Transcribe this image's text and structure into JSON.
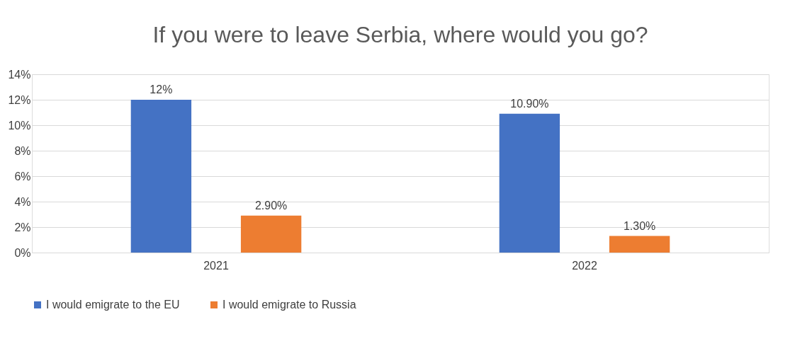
{
  "chart_data": {
    "type": "bar",
    "title": "If you were to leave Serbia, where would you go?",
    "categories": [
      "2021",
      "2022"
    ],
    "series": [
      {
        "name": "I would emigrate to the EU",
        "color": "#4472c4",
        "values": [
          12,
          10.9
        ],
        "value_labels": [
          "12%",
          "10.90%"
        ]
      },
      {
        "name": "I would emigrate to Russia",
        "color": "#ed7d31",
        "values": [
          2.9,
          1.3
        ],
        "value_labels": [
          "2.90%",
          "1.30%"
        ]
      }
    ],
    "ylim": [
      0,
      14
    ],
    "yticks": [
      {
        "value": 0,
        "label": "0%"
      },
      {
        "value": 2,
        "label": "2%"
      },
      {
        "value": 4,
        "label": "4%"
      },
      {
        "value": 6,
        "label": "6%"
      },
      {
        "value": 8,
        "label": "8%"
      },
      {
        "value": 10,
        "label": "10%"
      },
      {
        "value": 12,
        "label": "12%"
      },
      {
        "value": 14,
        "label": "14%"
      }
    ],
    "grid": "y",
    "legend": "bottom"
  }
}
